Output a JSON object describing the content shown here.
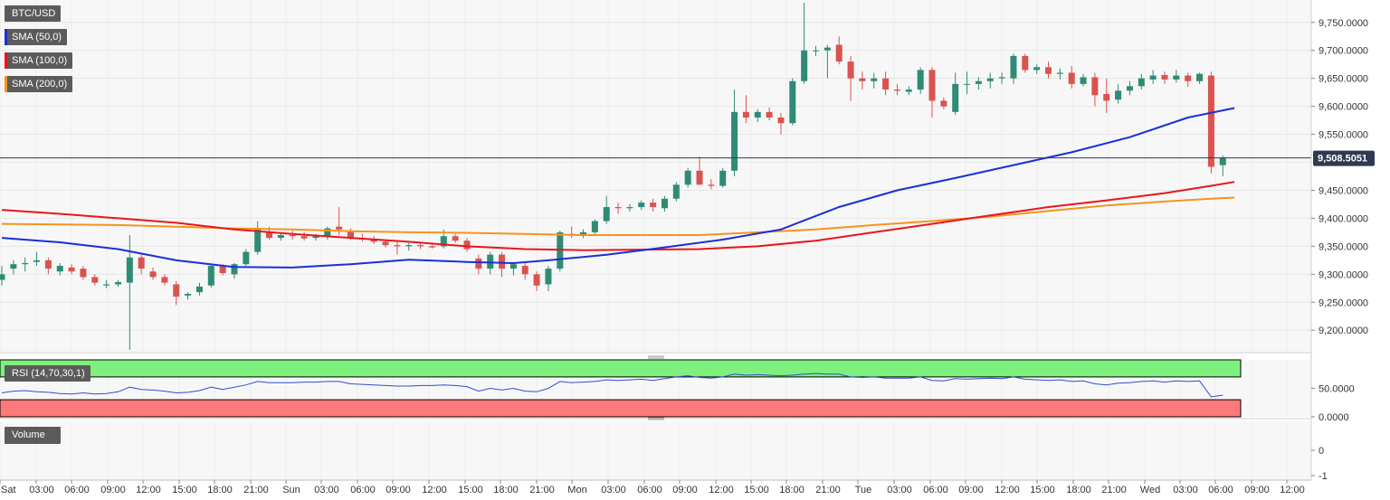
{
  "symbol": "BTC/USD",
  "indicators": {
    "sma50": "SMA (50,0)",
    "sma100": "SMA (100,0)",
    "sma200": "SMA (200,0)",
    "rsi": "RSI (14,70,30,1)",
    "volume": "Volume"
  },
  "colors": {
    "sma50": "#1a2fd6",
    "sma100": "#e8161b",
    "sma200": "#f7931e",
    "up": "#2e8b74",
    "down": "#d9534f",
    "rsi_line": "#2f4fd0",
    "rsi_overbought": "#7ef07e",
    "rsi_oversold": "#ff7a7a",
    "current_price_bg": "#2d3a52"
  },
  "current_price": "9,508.5051",
  "price_axis": [
    "9,750.0000",
    "9,700.0000",
    "9,650.0000",
    "9,600.0000",
    "9,550.0000",
    "9,450.0000",
    "9,400.0000",
    "9,350.0000",
    "9,300.0000",
    "9,250.0000",
    "9,200.0000"
  ],
  "rsi_axis": [
    "50.0000",
    "0.0000"
  ],
  "volume_axis": [
    "0",
    "-1"
  ],
  "time_axis": [
    "Sat",
    "03:00",
    "06:00",
    "09:00",
    "12:00",
    "15:00",
    "18:00",
    "21:00",
    "Sun",
    "03:00",
    "06:00",
    "09:00",
    "12:00",
    "15:00",
    "18:00",
    "21:00",
    "Mon",
    "03:00",
    "06:00",
    "09:00",
    "12:00",
    "15:00",
    "18:00",
    "21:00",
    "Tue",
    "03:00",
    "06:00",
    "09:00",
    "12:00",
    "15:00",
    "18:00",
    "21:00",
    "Wed",
    "03:00",
    "06:00",
    "09:00",
    "12:00"
  ],
  "chart_data": {
    "type": "candlestick",
    "title": "BTC/USD",
    "ylim": [
      9160,
      9790
    ],
    "candles": [
      [
        9290,
        9315,
        9280,
        9300
      ],
      [
        9310,
        9325,
        9300,
        9318
      ],
      [
        9318,
        9330,
        9305,
        9320
      ],
      [
        9322,
        9340,
        9315,
        9325
      ],
      [
        9325,
        9330,
        9300,
        9310
      ],
      [
        9305,
        9320,
        9298,
        9315
      ],
      [
        9312,
        9318,
        9300,
        9305
      ],
      [
        9310,
        9315,
        9290,
        9295
      ],
      [
        9295,
        9300,
        9280,
        9285
      ],
      [
        9280,
        9290,
        9275,
        9282
      ],
      [
        9282,
        9290,
        9278,
        9286
      ],
      [
        9285,
        9370,
        9165,
        9330
      ],
      [
        9330,
        9335,
        9300,
        9310
      ],
      [
        9305,
        9312,
        9290,
        9295
      ],
      [
        9295,
        9300,
        9280,
        9285
      ],
      [
        9282,
        9288,
        9245,
        9260
      ],
      [
        9262,
        9268,
        9255,
        9265
      ],
      [
        9268,
        9285,
        9262,
        9278
      ],
      [
        9280,
        9318,
        9276,
        9315
      ],
      [
        9315,
        9318,
        9298,
        9302
      ],
      [
        9300,
        9320,
        9292,
        9318
      ],
      [
        9318,
        9345,
        9315,
        9340
      ],
      [
        9340,
        9395,
        9335,
        9380
      ],
      [
        9375,
        9385,
        9362,
        9365
      ],
      [
        9365,
        9375,
        9360,
        9370
      ],
      [
        9370,
        9378,
        9362,
        9368
      ],
      [
        9368,
        9375,
        9360,
        9364
      ],
      [
        9365,
        9372,
        9360,
        9368
      ],
      [
        9368,
        9385,
        9362,
        9382
      ],
      [
        9385,
        9420,
        9370,
        9380
      ],
      [
        9378,
        9382,
        9362,
        9366
      ],
      [
        9365,
        9372,
        9358,
        9362
      ],
      [
        9362,
        9368,
        9354,
        9358
      ],
      [
        9358,
        9362,
        9348,
        9352
      ],
      [
        9352,
        9358,
        9335,
        9350
      ],
      [
        9350,
        9356,
        9342,
        9352
      ],
      [
        9352,
        9356,
        9345,
        9350
      ],
      [
        9350,
        9355,
        9346,
        9348
      ],
      [
        9350,
        9380,
        9346,
        9368
      ],
      [
        9368,
        9372,
        9356,
        9360
      ],
      [
        9360,
        9365,
        9340,
        9345
      ],
      [
        9328,
        9335,
        9300,
        9310
      ],
      [
        9310,
        9340,
        9300,
        9335
      ],
      [
        9335,
        9340,
        9295,
        9310
      ],
      [
        9310,
        9322,
        9298,
        9318
      ],
      [
        9315,
        9320,
        9290,
        9300
      ],
      [
        9300,
        9305,
        9270,
        9280
      ],
      [
        9282,
        9315,
        9270,
        9310
      ],
      [
        9310,
        9378,
        9305,
        9375
      ],
      [
        9372,
        9385,
        9365,
        9370
      ],
      [
        9370,
        9380,
        9365,
        9375
      ],
      [
        9375,
        9398,
        9372,
        9395
      ],
      [
        9395,
        9440,
        9390,
        9420
      ],
      [
        9420,
        9428,
        9408,
        9418
      ],
      [
        9418,
        9425,
        9412,
        9420
      ],
      [
        9420,
        9432,
        9415,
        9428
      ],
      [
        9428,
        9435,
        9412,
        9420
      ],
      [
        9418,
        9440,
        9412,
        9435
      ],
      [
        9435,
        9465,
        9430,
        9460
      ],
      [
        9460,
        9490,
        9455,
        9485
      ],
      [
        9485,
        9510,
        9460,
        9460
      ],
      [
        9460,
        9470,
        9452,
        9458
      ],
      [
        9458,
        9490,
        9455,
        9485
      ],
      [
        9485,
        9630,
        9475,
        9590
      ],
      [
        9590,
        9620,
        9570,
        9580
      ],
      [
        9580,
        9595,
        9572,
        9590
      ],
      [
        9590,
        9598,
        9575,
        9580
      ],
      [
        9580,
        9588,
        9550,
        9570
      ],
      [
        9570,
        9650,
        9566,
        9645
      ],
      [
        9645,
        9785,
        9640,
        9700
      ],
      [
        9700,
        9708,
        9690,
        9700
      ],
      [
        9700,
        9710,
        9650,
        9705
      ],
      [
        9710,
        9725,
        9675,
        9680
      ],
      [
        9680,
        9690,
        9610,
        9650
      ],
      [
        9650,
        9662,
        9630,
        9645
      ],
      [
        9645,
        9660,
        9632,
        9650
      ],
      [
        9650,
        9662,
        9620,
        9630
      ],
      [
        9630,
        9640,
        9620,
        9628
      ],
      [
        9626,
        9636,
        9620,
        9630
      ],
      [
        9630,
        9670,
        9622,
        9665
      ],
      [
        9665,
        9670,
        9580,
        9610
      ],
      [
        9610,
        9616,
        9595,
        9600
      ],
      [
        9590,
        9660,
        9585,
        9640
      ],
      [
        9640,
        9662,
        9622,
        9640
      ],
      [
        9640,
        9652,
        9630,
        9645
      ],
      [
        9645,
        9660,
        9632,
        9650
      ],
      [
        9650,
        9660,
        9640,
        9652
      ],
      [
        9650,
        9694,
        9640,
        9690
      ],
      [
        9690,
        9694,
        9660,
        9665
      ],
      [
        9665,
        9675,
        9658,
        9670
      ],
      [
        9670,
        9680,
        9650,
        9658
      ],
      [
        9658,
        9668,
        9648,
        9660
      ],
      [
        9660,
        9672,
        9632,
        9640
      ],
      [
        9640,
        9658,
        9636,
        9652
      ],
      [
        9652,
        9660,
        9600,
        9620
      ],
      [
        9622,
        9650,
        9588,
        9610
      ],
      [
        9612,
        9640,
        9605,
        9628
      ],
      [
        9628,
        9645,
        9620,
        9636
      ],
      [
        9636,
        9658,
        9630,
        9650
      ],
      [
        9648,
        9665,
        9640,
        9655
      ],
      [
        9656,
        9662,
        9640,
        9648
      ],
      [
        9648,
        9665,
        9642,
        9655
      ],
      [
        9655,
        9660,
        9635,
        9645
      ],
      [
        9645,
        9660,
        9640,
        9658
      ],
      [
        9655,
        9662,
        9480,
        9492
      ],
      [
        9495,
        9512,
        9475,
        9508
      ]
    ],
    "sma50": [
      [
        0,
        9365
      ],
      [
        5,
        9357
      ],
      [
        10,
        9345
      ],
      [
        15,
        9325
      ],
      [
        20,
        9313
      ],
      [
        25,
        9312
      ],
      [
        30,
        9318
      ],
      [
        35,
        9326
      ],
      [
        40,
        9322
      ],
      [
        44,
        9320
      ],
      [
        47,
        9325
      ],
      [
        52,
        9335
      ],
      [
        57,
        9348
      ],
      [
        62,
        9362
      ],
      [
        67,
        9380
      ],
      [
        72,
        9420
      ],
      [
        77,
        9450
      ],
      [
        82,
        9472
      ],
      [
        87,
        9495
      ],
      [
        92,
        9518
      ],
      [
        97,
        9545
      ],
      [
        102,
        9580
      ],
      [
        106,
        9597
      ]
    ],
    "sma100": [
      [
        0,
        9415
      ],
      [
        5,
        9408
      ],
      [
        10,
        9400
      ],
      [
        15,
        9392
      ],
      [
        20,
        9380
      ],
      [
        25,
        9372
      ],
      [
        30,
        9365
      ],
      [
        35,
        9358
      ],
      [
        40,
        9350
      ],
      [
        45,
        9345
      ],
      [
        50,
        9343
      ],
      [
        55,
        9344
      ],
      [
        60,
        9345
      ],
      [
        65,
        9350
      ],
      [
        70,
        9360
      ],
      [
        75,
        9375
      ],
      [
        80,
        9390
      ],
      [
        85,
        9405
      ],
      [
        90,
        9420
      ],
      [
        95,
        9432
      ],
      [
        100,
        9445
      ],
      [
        104,
        9458
      ],
      [
        106,
        9465
      ]
    ],
    "sma200": [
      [
        0,
        9390
      ],
      [
        5,
        9389
      ],
      [
        10,
        9388
      ],
      [
        15,
        9385
      ],
      [
        20,
        9382
      ],
      [
        25,
        9380
      ],
      [
        30,
        9377
      ],
      [
        35,
        9375
      ],
      [
        40,
        9374
      ],
      [
        45,
        9372
      ],
      [
        50,
        9370
      ],
      [
        55,
        9370
      ],
      [
        60,
        9370
      ],
      [
        65,
        9375
      ],
      [
        70,
        9380
      ],
      [
        75,
        9388
      ],
      [
        80,
        9395
      ],
      [
        85,
        9403
      ],
      [
        90,
        9413
      ],
      [
        95,
        9423
      ],
      [
        100,
        9430
      ],
      [
        104,
        9435
      ],
      [
        106,
        9437
      ]
    ],
    "rsi": [
      42,
      45,
      46,
      44,
      43,
      41,
      40,
      42,
      40,
      41,
      44,
      52,
      48,
      47,
      45,
      42,
      43,
      46,
      52,
      48,
      52,
      56,
      62,
      60,
      60,
      60,
      61,
      61,
      62,
      62,
      58,
      57,
      56,
      55,
      54,
      54,
      55,
      55,
      56,
      55,
      53,
      45,
      50,
      47,
      50,
      45,
      44,
      50,
      62,
      60,
      61,
      62,
      65,
      64,
      65,
      66,
      64,
      67,
      70,
      72,
      69,
      68,
      70,
      75,
      73,
      74,
      73,
      72,
      73,
      75,
      76,
      75,
      75,
      70,
      69,
      70,
      68,
      68,
      68,
      70,
      64,
      63,
      67,
      66,
      67,
      68,
      67,
      70,
      66,
      65,
      64,
      65,
      62,
      63,
      58,
      56,
      59,
      60,
      62,
      63,
      61,
      63,
      62,
      63,
      35,
      38
    ],
    "volume_axis": [
      0,
      -1
    ]
  }
}
